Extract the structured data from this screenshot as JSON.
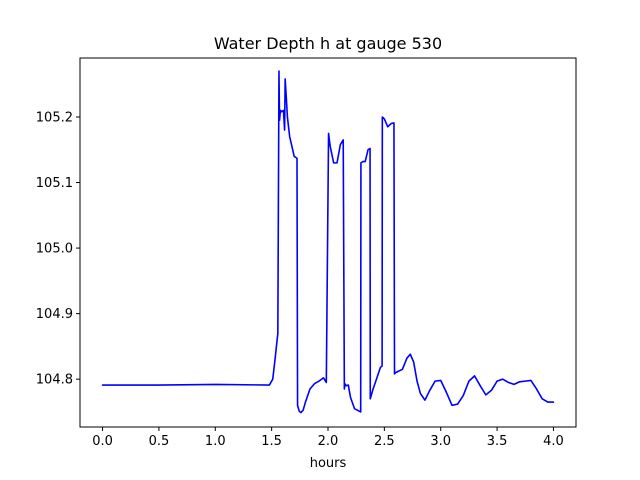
{
  "chart_data": {
    "type": "line",
    "title": "Water Depth h at gauge 530",
    "xlabel": "hours",
    "ylabel": "",
    "xlim": [
      -0.2,
      4.2
    ],
    "ylim": [
      104.727,
      105.29
    ],
    "xticks": [
      0.0,
      0.5,
      1.0,
      1.5,
      2.0,
      2.5,
      3.0,
      3.5,
      4.0
    ],
    "xtick_labels": [
      "0.0",
      "0.5",
      "1.0",
      "1.5",
      "2.0",
      "2.5",
      "3.0",
      "3.5",
      "4.0"
    ],
    "yticks": [
      104.8,
      104.9,
      105.0,
      105.1,
      105.2
    ],
    "ytick_labels": [
      "104.8",
      "104.9",
      "105.0",
      "105.1",
      "105.2"
    ],
    "grid": false,
    "series": [
      {
        "color": "#0000ff",
        "x": [
          0.0,
          0.5,
          1.0,
          1.48,
          1.51,
          1.53,
          1.555,
          1.565,
          1.57,
          1.575,
          1.58,
          1.59,
          1.605,
          1.615,
          1.62,
          1.63,
          1.64,
          1.66,
          1.68,
          1.7,
          1.725,
          1.73,
          1.745,
          1.76,
          1.78,
          1.8,
          1.84,
          1.88,
          1.92,
          1.96,
          1.985,
          2.005,
          2.012,
          2.02,
          2.05,
          2.08,
          2.11,
          2.135,
          2.145,
          2.15,
          2.16,
          2.18,
          2.2,
          2.235,
          2.29,
          2.292,
          2.31,
          2.33,
          2.355,
          2.373,
          2.375,
          2.4,
          2.43,
          2.465,
          2.48,
          2.482,
          2.5,
          2.53,
          2.56,
          2.585,
          2.59,
          2.6,
          2.66,
          2.7,
          2.73,
          2.76,
          2.79,
          2.82,
          2.86,
          2.9,
          2.95,
          3.0,
          3.05,
          3.1,
          3.15,
          3.2,
          3.25,
          3.3,
          3.35,
          3.4,
          3.45,
          3.5,
          3.55,
          3.6,
          3.65,
          3.7,
          3.75,
          3.8,
          3.85,
          3.9,
          3.95,
          4.0
        ],
        "y": [
          104.791,
          104.791,
          104.792,
          104.791,
          104.8,
          104.83,
          104.87,
          105.27,
          105.195,
          105.205,
          105.21,
          105.208,
          105.21,
          105.18,
          105.258,
          105.23,
          105.2,
          105.17,
          105.155,
          105.14,
          105.137,
          104.76,
          104.751,
          104.749,
          104.753,
          104.765,
          104.785,
          104.793,
          104.797,
          104.802,
          104.795,
          105.175,
          105.165,
          105.155,
          105.13,
          105.13,
          105.158,
          105.165,
          104.785,
          104.793,
          104.79,
          104.791,
          104.772,
          104.755,
          104.75,
          105.13,
          105.132,
          105.132,
          105.15,
          105.152,
          104.77,
          104.785,
          104.8,
          104.818,
          104.82,
          105.2,
          105.197,
          105.185,
          105.19,
          105.191,
          104.808,
          104.81,
          104.815,
          104.832,
          104.838,
          104.826,
          104.797,
          104.778,
          104.768,
          104.782,
          104.797,
          104.798,
          104.78,
          104.76,
          104.762,
          104.775,
          104.797,
          104.805,
          104.79,
          104.776,
          104.783,
          104.797,
          104.8,
          104.795,
          104.792,
          104.796,
          104.797,
          104.798,
          104.785,
          104.77,
          104.765,
          104.765
        ]
      }
    ]
  }
}
